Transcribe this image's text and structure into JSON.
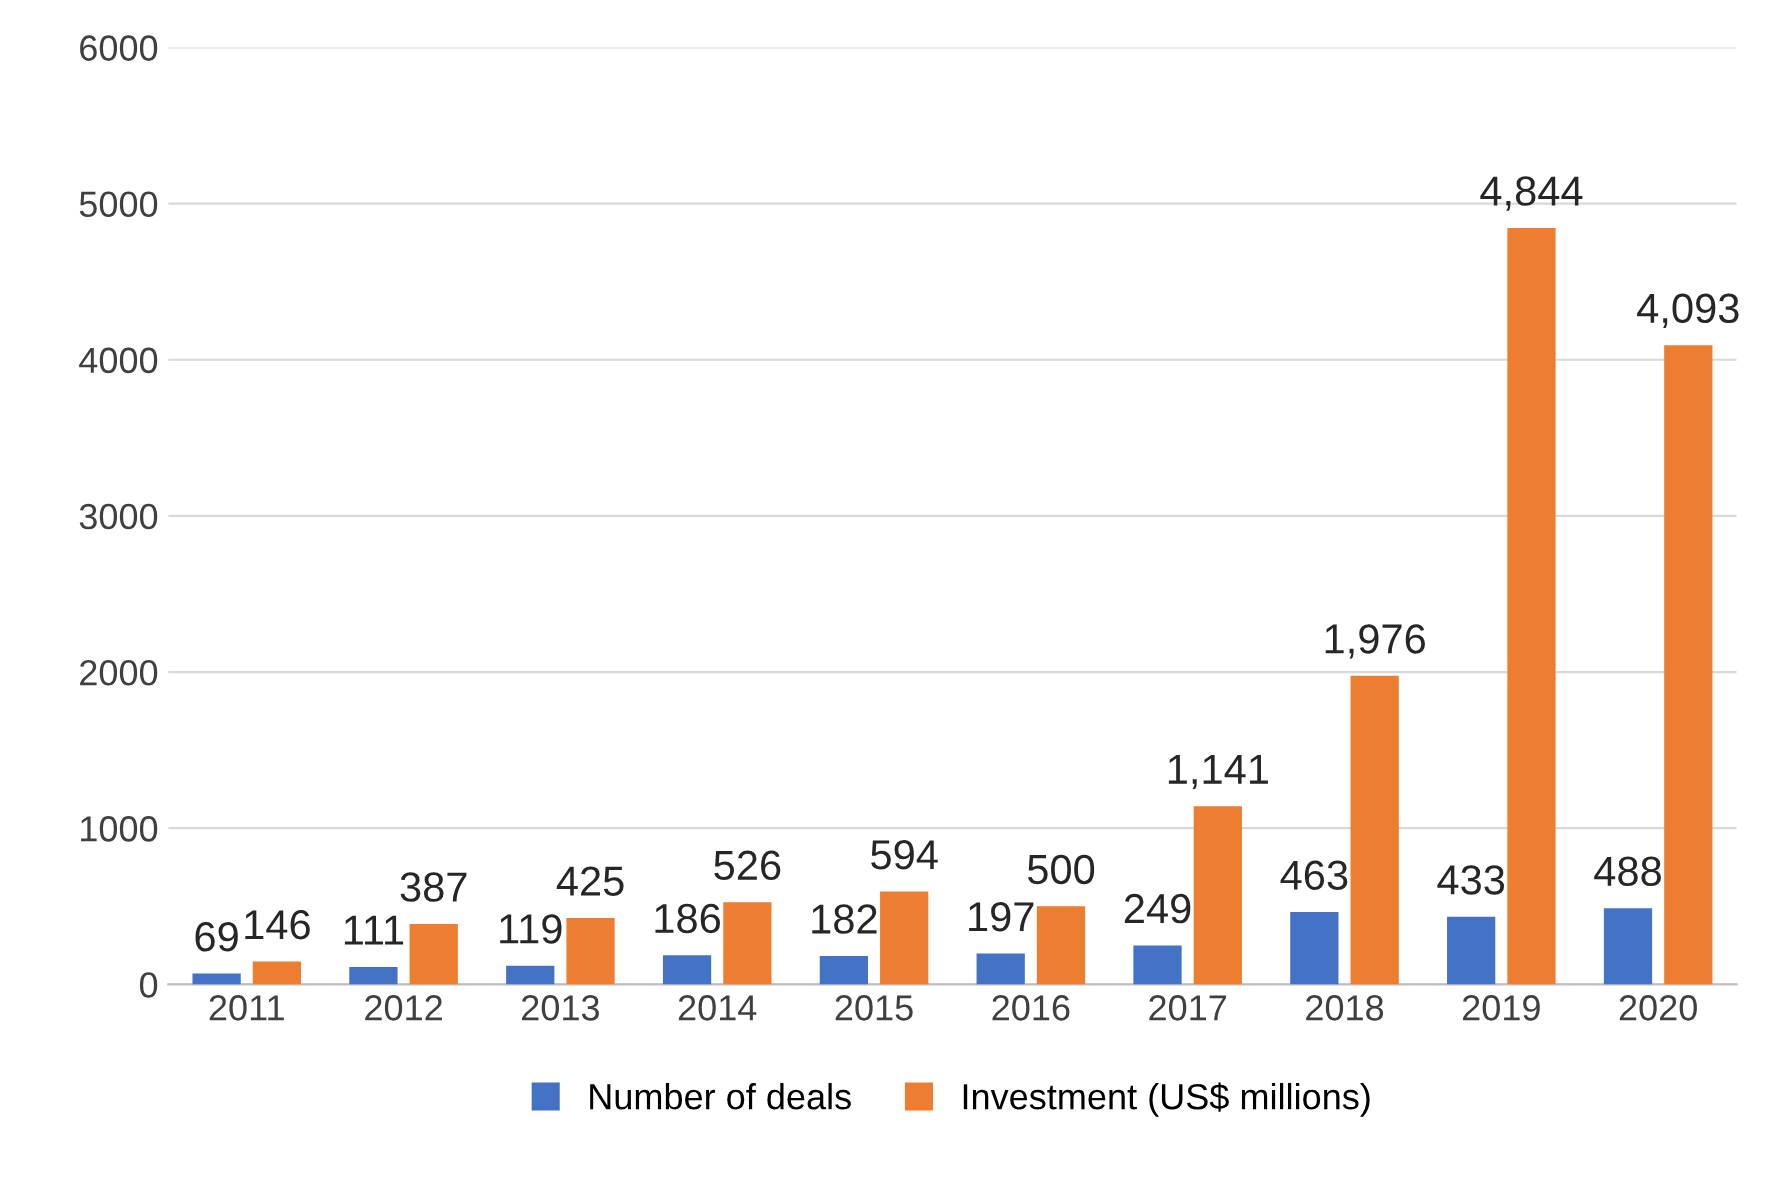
{
  "chart_data": {
    "type": "bar",
    "categories": [
      "2011",
      "2012",
      "2013",
      "2014",
      "2015",
      "2016",
      "2017",
      "2018",
      "2019",
      "2020"
    ],
    "series": [
      {
        "name": "Number of deals",
        "color": "#4472c4",
        "values": [
          69,
          111,
          119,
          186,
          182,
          197,
          249,
          463,
          433,
          488
        ],
        "value_labels": [
          "69",
          "111",
          "119",
          "186",
          "182",
          "197",
          "249",
          "463",
          "433",
          "488"
        ]
      },
      {
        "name": "Investment (US$ millions)",
        "color": "#ed7d31",
        "values": [
          146,
          387,
          425,
          526,
          594,
          500,
          1141,
          1976,
          4844,
          4093
        ],
        "value_labels": [
          "146",
          "387",
          "425",
          "526",
          "594",
          "500",
          "1,141",
          "1,976",
          "4,844",
          "4,093"
        ]
      }
    ],
    "ylim": [
      0,
      6000
    ],
    "yticks": [
      0,
      1000,
      2000,
      3000,
      4000,
      5000,
      6000
    ],
    "grid": "y",
    "legend": "bottom"
  }
}
